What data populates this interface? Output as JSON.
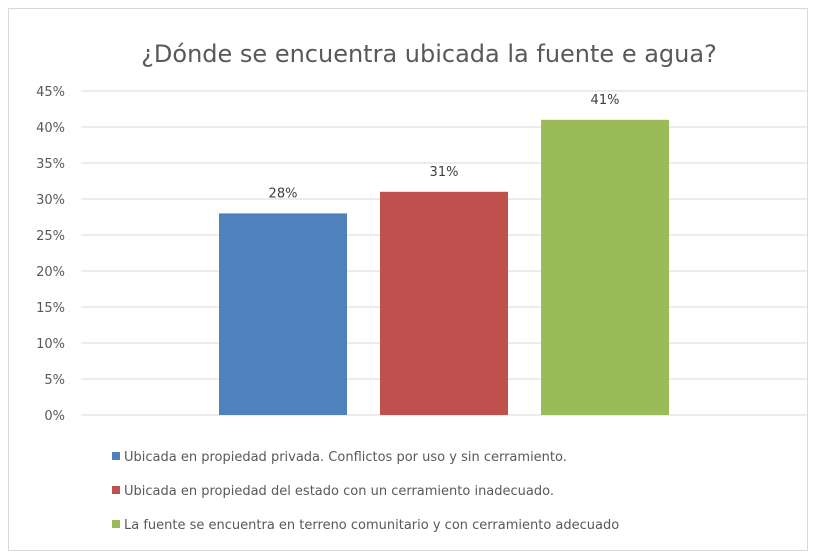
{
  "chart_data": {
    "type": "bar",
    "title": "¿Dónde se encuentra ubicada la fuente e agua?",
    "xlabel": "",
    "ylabel": "",
    "ylim": [
      0,
      0.45
    ],
    "y_ticks": [
      "0%",
      "5%",
      "10%",
      "15%",
      "20%",
      "25%",
      "30%",
      "35%",
      "40%",
      "45%"
    ],
    "grid": true,
    "legend_position": "bottom",
    "series": [
      {
        "name": "Ubicada en propiedad privada. Conflictos por uso y sin cerramiento.",
        "value": 0.28,
        "label": "28%",
        "color": "#4f81bd"
      },
      {
        "name": "Ubicada en propiedad del estado con un cerramiento inadecuado.",
        "value": 0.31,
        "label": "31%",
        "color": "#c0504d"
      },
      {
        "name": "La fuente se encuentra en terreno comunitario y con cerramiento adecuado",
        "value": 0.41,
        "label": "41%",
        "color": "#9bbb59"
      }
    ]
  }
}
